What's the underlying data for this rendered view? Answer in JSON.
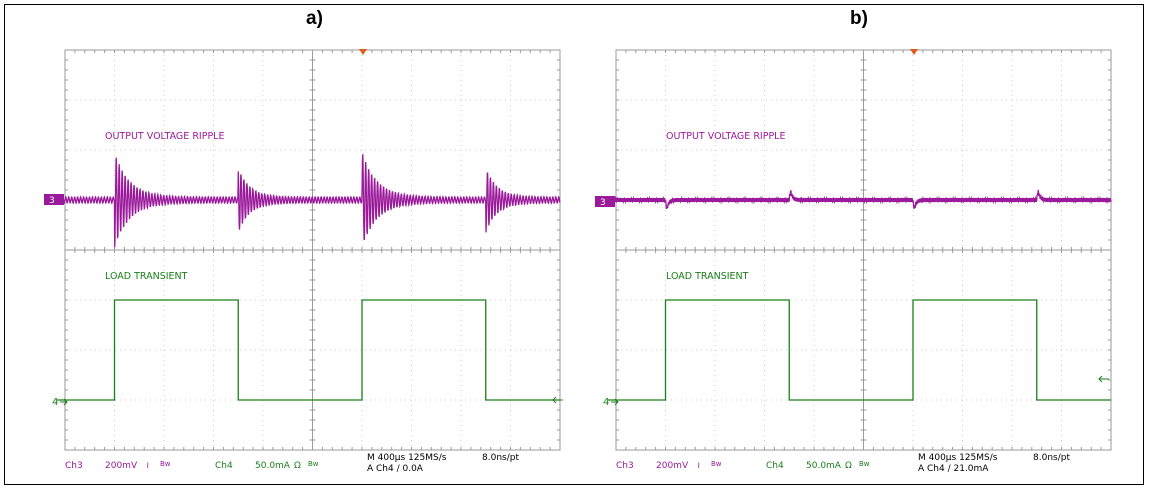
{
  "colors": {
    "ch3": "#9b1a9b",
    "ch4": "#1a7f1a",
    "grid": "#cfcfcf",
    "frame": "#9a9a9a",
    "marker": "#e05a1a"
  },
  "panels": [
    {
      "title": "a)",
      "ch3_label": "OUTPUT VOLTAGE RIPPLE",
      "ch4_label": "LOAD TRANSIENT",
      "ch3_marker": "3",
      "ch4_marker": "4",
      "footer": {
        "ch3_name": "Ch3",
        "ch3_scale": "200mV",
        "ch3_sym": "≀",
        "ch3_bw": "Bw",
        "ch4_name": "Ch4",
        "ch4_scale": "50.0mA",
        "ch4_sym": "Ω",
        "ch4_bw": "Bw",
        "timebase": "M 400µs 125MS/s",
        "record": "8.0ns/pt",
        "trigger": "A  Ch4  ∕  0.0A"
      }
    },
    {
      "title": "b)",
      "ch3_label": "OUTPUT VOLTAGE RIPPLE",
      "ch4_label": "LOAD TRANSIENT",
      "ch3_marker": "3",
      "ch4_marker": "4",
      "footer": {
        "ch3_name": "Ch3",
        "ch3_scale": "200mV",
        "ch3_sym": "≀",
        "ch3_bw": "Bw",
        "ch4_name": "Ch4",
        "ch4_scale": "50.0mA",
        "ch4_sym": "Ω",
        "ch4_bw": "Bw",
        "timebase": "M 400µs 125MS/s",
        "record": "8.0ns/pt",
        "trigger": "A  Ch4  ∕  21.0mA"
      }
    }
  ],
  "chart_data": [
    {
      "type": "line",
      "title": "a)",
      "x_divisions": 10,
      "y_divisions": 8,
      "grid": true,
      "series": [
        {
          "name": "OUTPUT VOLTAGE RIPPLE",
          "channel": "Ch3",
          "baseline_div": 5.0,
          "ringing": [
            {
              "t_div": 2.0,
              "amp_div": 0.9,
              "decay_div": 0.6
            },
            {
              "t_div": 7.0,
              "amp_div": 0.6,
              "decay_div": 0.45
            },
            {
              "t_div": 12.0,
              "amp_div": 0.9,
              "decay_div": 0.6
            },
            {
              "t_div": 17.0,
              "amp_div": 0.6,
              "decay_div": 0.45
            }
          ],
          "noise_div": 0.06,
          "period_div": 0.12
        },
        {
          "name": "LOAD TRANSIENT",
          "channel": "Ch4",
          "low_div": 1.0,
          "high_div": 3.0,
          "high_intervals_div": [
            [
              2.0,
              7.0
            ],
            [
              12.0,
              17.0
            ]
          ]
        }
      ]
    },
    {
      "type": "line",
      "title": "b)",
      "x_divisions": 10,
      "y_divisions": 8,
      "grid": true,
      "series": [
        {
          "name": "OUTPUT VOLTAGE RIPPLE",
          "channel": "Ch3",
          "baseline_div": 5.0,
          "spikes": [
            {
              "t_div": 2.0,
              "amp_div": -0.35
            },
            {
              "t_div": 7.0,
              "amp_div": 0.35
            },
            {
              "t_div": 12.0,
              "amp_div": -0.35
            },
            {
              "t_div": 17.0,
              "amp_div": 0.35
            }
          ],
          "noise_div": 0.04
        },
        {
          "name": "LOAD TRANSIENT",
          "channel": "Ch4",
          "low_div": 1.0,
          "high_div": 3.0,
          "high_intervals_div": [
            [
              2.0,
              7.0
            ],
            [
              12.0,
              17.0
            ]
          ]
        }
      ]
    }
  ]
}
